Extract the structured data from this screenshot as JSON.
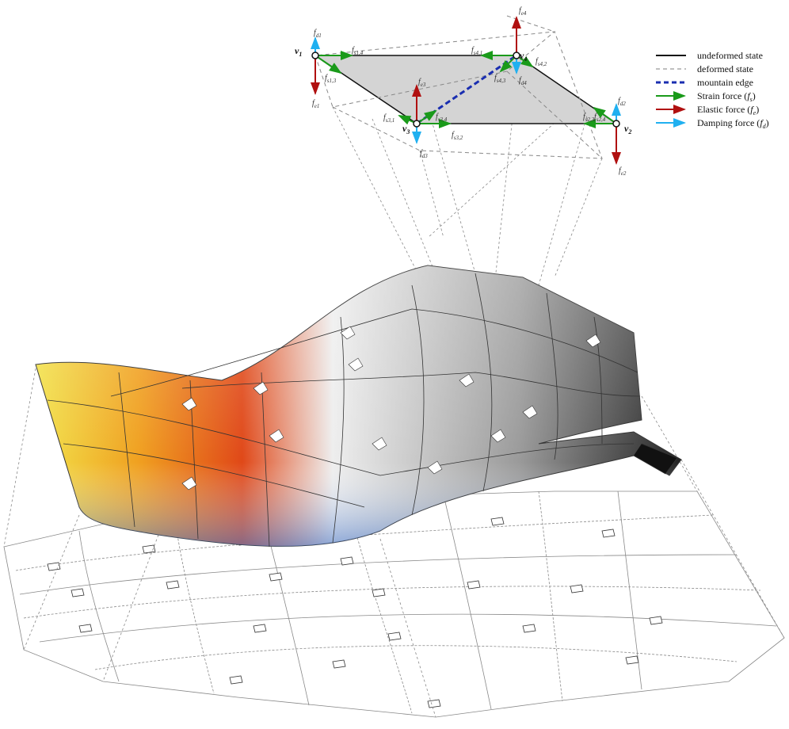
{
  "legend": [
    {
      "label": "undeformed state"
    },
    {
      "label": "deformed state"
    },
    {
      "label": "mountain edge"
    },
    {
      "label": "Strain force (",
      "symbol": "f",
      "sub": "s",
      "close": ")"
    },
    {
      "label": "Elastic force (",
      "symbol": "f",
      "sub": "e",
      "close": ")"
    },
    {
      "label": "Damping force (",
      "symbol": "f",
      "sub": "d",
      "close": ")"
    }
  ],
  "vertices": [
    {
      "name": "v",
      "sub": "1"
    },
    {
      "name": "v",
      "sub": "4"
    },
    {
      "name": "v",
      "sub": "3"
    },
    {
      "name": "v",
      "sub": "2"
    }
  ],
  "forces": [
    {
      "symbol": "f",
      "sub": "d1"
    },
    {
      "symbol": "f",
      "sub": "e1"
    },
    {
      "symbol": "f",
      "sub": "s1,4"
    },
    {
      "symbol": "f",
      "sub": "s1,3"
    },
    {
      "symbol": "f",
      "sub": "e4"
    },
    {
      "symbol": "f",
      "sub": "d4"
    },
    {
      "symbol": "f",
      "sub": "s4,1"
    },
    {
      "symbol": "f",
      "sub": "s4,2"
    },
    {
      "symbol": "f",
      "sub": "s4,3"
    },
    {
      "symbol": "f",
      "sub": "e3"
    },
    {
      "symbol": "f",
      "sub": "d3"
    },
    {
      "symbol": "f",
      "sub": "s3,1"
    },
    {
      "symbol": "f",
      "sub": "s3,4"
    },
    {
      "symbol": "f",
      "sub": "s3,2"
    },
    {
      "symbol": "f",
      "sub": "d2"
    },
    {
      "symbol": "f",
      "sub": "e2"
    },
    {
      "symbol": "f",
      "sub": "s2,4"
    },
    {
      "symbol": "f",
      "sub": "s2,3"
    }
  ]
}
